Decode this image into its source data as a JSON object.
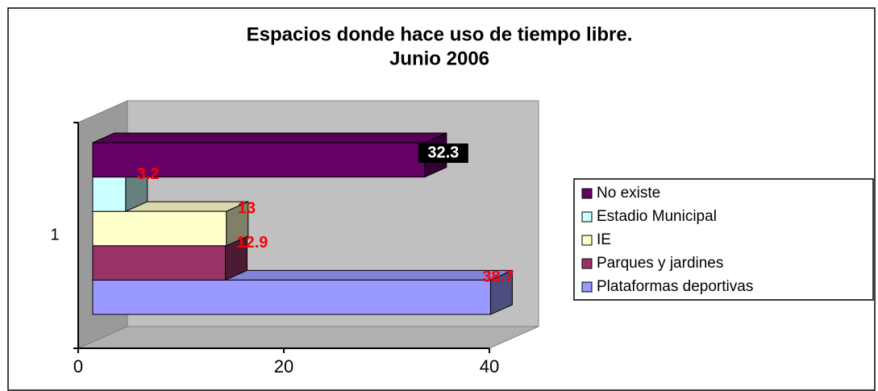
{
  "chart_data": {
    "type": "bar3d_horizontal",
    "title": "Espacios donde hace uso de tiempo libre.",
    "subtitle": "Junio 2006",
    "categories": [
      "1"
    ],
    "series": [
      {
        "name": "Plataformas deportivas",
        "color": "#9999ff",
        "values": [
          38.7
        ]
      },
      {
        "name": "Parques y jardines",
        "color": "#993366",
        "values": [
          12.9
        ]
      },
      {
        "name": "IE",
        "color": "#ffffcc",
        "values": [
          13
        ]
      },
      {
        "name": "Estadio Municipal",
        "color": "#ccffff",
        "values": [
          3.2
        ]
      },
      {
        "name": "No existe",
        "color": "#660066",
        "values": [
          32.3
        ]
      }
    ],
    "xlim": [
      0,
      40
    ],
    "xticks": [
      0,
      20,
      40
    ],
    "grid": false,
    "legend": "right"
  }
}
